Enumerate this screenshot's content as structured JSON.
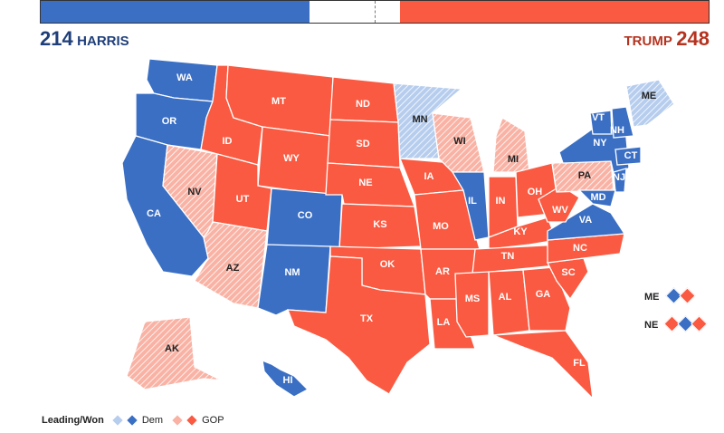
{
  "header": {
    "dem_votes": "214",
    "dem_name": "HARRIS",
    "gop_votes": "248",
    "gop_name": "TRUMP",
    "dem_fraction": 0.402,
    "gop_fraction": 0.462
  },
  "colors": {
    "dem_won": "#3a6fc4",
    "gop_won": "#fa5a41",
    "dem_lead": "#b6cdee",
    "gop_lead": "#f9b2a4"
  },
  "states": [
    {
      "abbr": "WA",
      "status": "dem_won"
    },
    {
      "abbr": "OR",
      "status": "dem_won"
    },
    {
      "abbr": "CA",
      "status": "dem_won"
    },
    {
      "abbr": "NV",
      "status": "gop_lead"
    },
    {
      "abbr": "ID",
      "status": "gop_won"
    },
    {
      "abbr": "MT",
      "status": "gop_won"
    },
    {
      "abbr": "WY",
      "status": "gop_won"
    },
    {
      "abbr": "UT",
      "status": "gop_won"
    },
    {
      "abbr": "AZ",
      "status": "gop_lead"
    },
    {
      "abbr": "CO",
      "status": "dem_won"
    },
    {
      "abbr": "NM",
      "status": "dem_won"
    },
    {
      "abbr": "ND",
      "status": "gop_won"
    },
    {
      "abbr": "SD",
      "status": "gop_won"
    },
    {
      "abbr": "NE",
      "status": "gop_won"
    },
    {
      "abbr": "KS",
      "status": "gop_won"
    },
    {
      "abbr": "OK",
      "status": "gop_won"
    },
    {
      "abbr": "TX",
      "status": "gop_won"
    },
    {
      "abbr": "MN",
      "status": "dem_lead"
    },
    {
      "abbr": "IA",
      "status": "gop_won"
    },
    {
      "abbr": "MO",
      "status": "gop_won"
    },
    {
      "abbr": "AR",
      "status": "gop_won"
    },
    {
      "abbr": "LA",
      "status": "gop_won"
    },
    {
      "abbr": "WI",
      "status": "gop_lead"
    },
    {
      "abbr": "IL",
      "status": "dem_won"
    },
    {
      "abbr": "MI",
      "status": "gop_lead"
    },
    {
      "abbr": "IN",
      "status": "gop_won"
    },
    {
      "abbr": "OH",
      "status": "gop_won"
    },
    {
      "abbr": "KY",
      "status": "gop_won"
    },
    {
      "abbr": "TN",
      "status": "gop_won"
    },
    {
      "abbr": "MS",
      "status": "gop_won"
    },
    {
      "abbr": "AL",
      "status": "gop_won"
    },
    {
      "abbr": "GA",
      "status": "gop_won"
    },
    {
      "abbr": "FL",
      "status": "gop_won"
    },
    {
      "abbr": "SC",
      "status": "gop_won"
    },
    {
      "abbr": "NC",
      "status": "gop_won"
    },
    {
      "abbr": "VA",
      "status": "dem_won"
    },
    {
      "abbr": "WV",
      "status": "gop_won"
    },
    {
      "abbr": "PA",
      "status": "gop_lead"
    },
    {
      "abbr": "NY",
      "status": "dem_won"
    },
    {
      "abbr": "VT",
      "status": "dem_won"
    },
    {
      "abbr": "NH",
      "status": "dem_won"
    },
    {
      "abbr": "ME",
      "status": "dem_lead"
    },
    {
      "abbr": "CT",
      "status": "dem_won"
    },
    {
      "abbr": "NJ",
      "status": "dem_won"
    },
    {
      "abbr": "MD",
      "status": "dem_won"
    },
    {
      "abbr": "AK",
      "status": "gop_lead"
    },
    {
      "abbr": "HI",
      "status": "dem_won"
    }
  ],
  "splits": [
    {
      "abbr": "ME",
      "districts": [
        "dem_won",
        "gop_won"
      ]
    },
    {
      "abbr": "NE",
      "districts": [
        "gop_won",
        "dem_won",
        "gop_won"
      ]
    }
  ],
  "legend": {
    "title": "Leading/Won",
    "dem": "Dem",
    "gop": "GOP"
  }
}
